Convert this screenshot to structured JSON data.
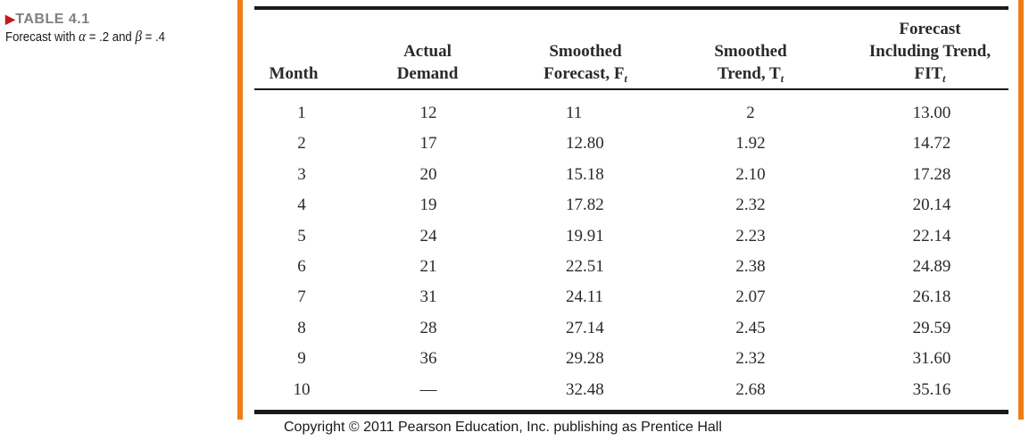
{
  "caption": {
    "label": "TABLE 4.1",
    "subtitle_prefix": "Forecast with ",
    "alpha_symbol": "α",
    "alpha_text": " = .2 and ",
    "beta_symbol": "β",
    "beta_text": " = .4"
  },
  "headers": {
    "month": "Month",
    "demand_line1": "Actual",
    "demand_line2": "Demand",
    "forecast_line1": "Smoothed",
    "forecast_line2": "Forecast, F",
    "forecast_sub": "t",
    "trend_line1": "Smoothed",
    "trend_line2": "Trend, T",
    "trend_sub": "t",
    "fit_line1": "Forecast",
    "fit_line2": "Including Trend,",
    "fit_line3": "FIT",
    "fit_sub": "t"
  },
  "rows": [
    {
      "month": "1",
      "demand": "12",
      "forecast": "11",
      "trend": "2",
      "fit": "13.00"
    },
    {
      "month": "2",
      "demand": "17",
      "forecast": "12.80",
      "trend": "1.92",
      "fit": "14.72"
    },
    {
      "month": "3",
      "demand": "20",
      "forecast": "15.18",
      "trend": "2.10",
      "fit": "17.28"
    },
    {
      "month": "4",
      "demand": "19",
      "forecast": "17.82",
      "trend": "2.32",
      "fit": "20.14"
    },
    {
      "month": "5",
      "demand": "24",
      "forecast": "19.91",
      "trend": "2.23",
      "fit": "22.14"
    },
    {
      "month": "6",
      "demand": "21",
      "forecast": "22.51",
      "trend": "2.38",
      "fit": "24.89"
    },
    {
      "month": "7",
      "demand": "31",
      "forecast": "24.11",
      "trend": "2.07",
      "fit": "26.18"
    },
    {
      "month": "8",
      "demand": "28",
      "forecast": "27.14",
      "trend": "2.45",
      "fit": "29.59"
    },
    {
      "month": "9",
      "demand": "36",
      "forecast": "29.28",
      "trend": "2.32",
      "fit": "31.60"
    },
    {
      "month": "10",
      "demand": "—",
      "forecast": "32.48",
      "trend": "2.68",
      "fit": "35.16"
    }
  ],
  "footer": {
    "copyright": "Copyright © 2011 Pearson Education, Inc. publishing as Prentice Hall"
  },
  "colors": {
    "frame": "#ee7d16",
    "label_arrow": "#c4181c",
    "label_text": "#7f7f7f"
  }
}
